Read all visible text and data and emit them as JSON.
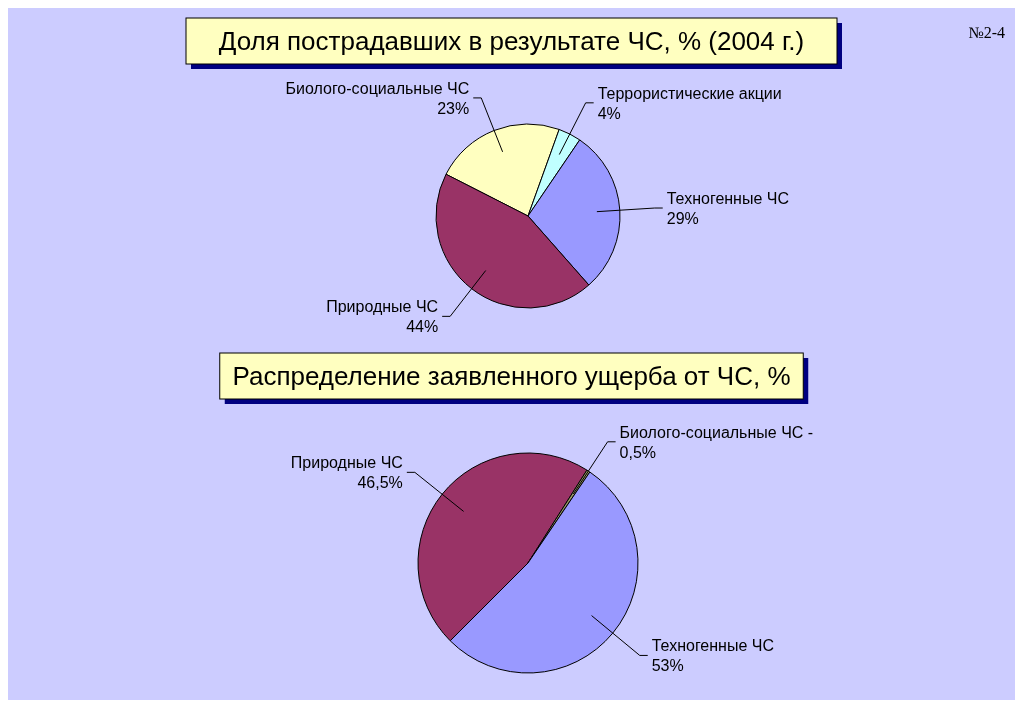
{
  "chart_data": [
    {
      "type": "pie",
      "title": "Доля пострадавших в результате ЧС, % (2004 г.)",
      "annotations": [
        "№2-4"
      ],
      "categories": [
        "Биолого-социальные ЧС",
        "Террористические акции",
        "Техногенные ЧС",
        "Природные ЧС"
      ],
      "values": [
        23,
        4,
        29,
        44
      ],
      "value_labels": [
        "23%",
        "4%",
        "29%",
        "44%"
      ],
      "colors": [
        "#ffffc0",
        "#c0ffff",
        "#9999ff",
        "#993366"
      ]
    },
    {
      "type": "pie",
      "title": "Распределение заявленного ущерба от ЧС, %",
      "categories": [
        "Природные ЧС",
        "Биолого-социальные ЧС -",
        "Техногенные ЧС"
      ],
      "values": [
        46.5,
        0.5,
        53
      ],
      "value_labels": [
        "46,5%",
        "0,5%",
        "53%"
      ],
      "colors": [
        "#993366",
        "#999966",
        "#9999ff"
      ]
    }
  ]
}
